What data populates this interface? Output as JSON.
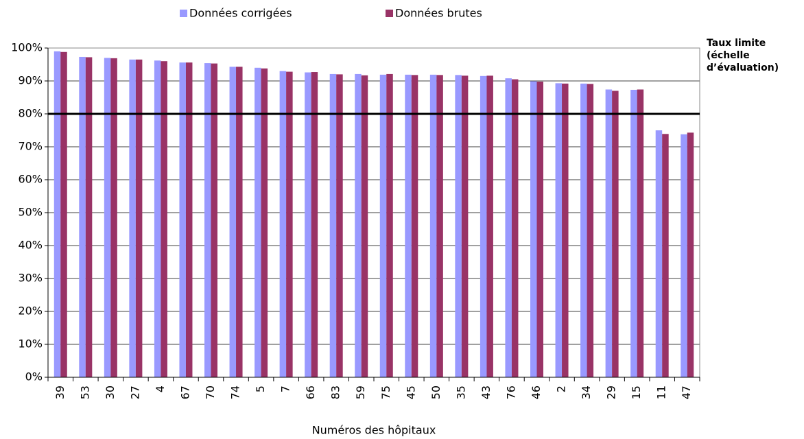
{
  "chart_data": {
    "type": "bar",
    "xlabel": "Numéros des hôpitaux",
    "categories": [
      "39",
      "53",
      "30",
      "27",
      "4",
      "67",
      "70",
      "74",
      "5",
      "7",
      "66",
      "83",
      "59",
      "75",
      "45",
      "50",
      "35",
      "43",
      "76",
      "46",
      "2",
      "34",
      "29",
      "15",
      "11",
      "47"
    ],
    "series": [
      {
        "name": "Données corrigées",
        "color": "#9999ff",
        "values": [
          99.0,
          97.3,
          97.0,
          96.5,
          96.2,
          95.6,
          95.4,
          94.3,
          94.0,
          93.0,
          92.6,
          92.1,
          92.1,
          91.9,
          91.9,
          91.9,
          91.8,
          91.5,
          90.8,
          89.9,
          89.3,
          89.2,
          87.4,
          87.3,
          75.0,
          73.8
        ]
      },
      {
        "name": "Données brutes",
        "color": "#993366",
        "values": [
          98.8,
          97.2,
          96.9,
          96.5,
          96.0,
          95.6,
          95.3,
          94.3,
          93.8,
          92.8,
          92.7,
          92.0,
          91.7,
          92.1,
          91.8,
          91.8,
          91.6,
          91.6,
          90.5,
          89.8,
          89.2,
          89.1,
          87.0,
          87.4,
          73.9,
          74.3
        ]
      }
    ],
    "threshold": {
      "value": 80,
      "label": "Taux limite (échelle d’évaluation)"
    },
    "ylim": [
      0,
      100
    ],
    "yticks": [
      {
        "value": 0,
        "label": "0%"
      },
      {
        "value": 10,
        "label": "10%"
      },
      {
        "value": 20,
        "label": "20%"
      },
      {
        "value": 30,
        "label": "30%"
      },
      {
        "value": 40,
        "label": "40%"
      },
      {
        "value": 50,
        "label": "50%"
      },
      {
        "value": 60,
        "label": "60%"
      },
      {
        "value": 70,
        "label": "70%"
      },
      {
        "value": 80,
        "label": "80%"
      },
      {
        "value": 90,
        "label": "90%"
      },
      {
        "value": 100,
        "label": "100%"
      }
    ],
    "grid": true,
    "legend": "top"
  }
}
